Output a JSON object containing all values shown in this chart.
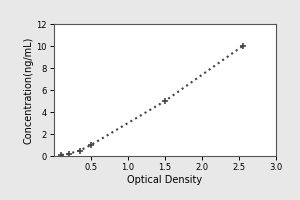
{
  "x_data": [
    0.1,
    0.2,
    0.35,
    0.5,
    1.5,
    2.55
  ],
  "y_data": [
    0.1,
    0.2,
    0.5,
    1.0,
    5.0,
    10.0
  ],
  "xlabel": "Optical Density",
  "ylabel": "Concentration(ng/mL)",
  "xlim": [
    0,
    3
  ],
  "ylim": [
    0,
    12
  ],
  "xticks": [
    0.5,
    1,
    1.5,
    2,
    2.5,
    3
  ],
  "yticks": [
    0,
    2,
    4,
    6,
    8,
    10,
    12
  ],
  "line_color": "#444444",
  "marker_color": "#444444",
  "line_style": "dotted",
  "line_width": 1.5,
  "marker": "+",
  "marker_size": 5,
  "marker_edge_width": 1.2,
  "background_color": "#e8e8e8",
  "plot_bg_color": "#ffffff",
  "tick_fontsize": 6,
  "label_fontsize": 7,
  "spine_color": "#555555"
}
